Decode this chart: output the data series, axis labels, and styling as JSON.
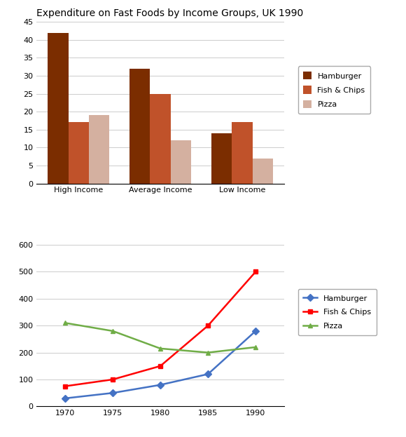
{
  "bar_title": "Expenditure on Fast Foods by Income Groups, UK 1990",
  "bar_categories": [
    "High Income",
    "Average Income",
    "Low Income"
  ],
  "bar_series": {
    "Hamburger": [
      42,
      32,
      14
    ],
    "Fish & Chips": [
      17,
      25,
      17
    ],
    "Pizza": [
      19,
      12,
      7
    ]
  },
  "bar_colors": {
    "Hamburger": "#7B2D00",
    "Fish & Chips": "#C0522A",
    "Pizza": "#D4B0A0"
  },
  "bar_ylim": [
    0,
    45
  ],
  "bar_yticks": [
    0,
    5,
    10,
    15,
    20,
    25,
    30,
    35,
    40,
    45
  ],
  "line_years": [
    1970,
    1975,
    1980,
    1985,
    1990
  ],
  "line_series": {
    "Hamburger": [
      30,
      50,
      80,
      120,
      280
    ],
    "Fish & Chips": [
      75,
      100,
      150,
      300,
      500
    ],
    "Pizza": [
      310,
      280,
      215,
      200,
      220
    ]
  },
  "line_colors": {
    "Hamburger": "#4472C4",
    "Fish & Chips": "#FF0000",
    "Pizza": "#70AD47"
  },
  "line_markers": {
    "Hamburger": "D",
    "Fish & Chips": "s",
    "Pizza": "^"
  },
  "line_ylim": [
    0,
    600
  ],
  "line_yticks": [
    0,
    100,
    200,
    300,
    400,
    500,
    600
  ],
  "line_xticks": [
    1970,
    1975,
    1980,
    1985,
    1990
  ],
  "background_color": "#FFFFFF",
  "title_fontsize": 10,
  "tick_fontsize": 8,
  "legend_fontsize": 8
}
